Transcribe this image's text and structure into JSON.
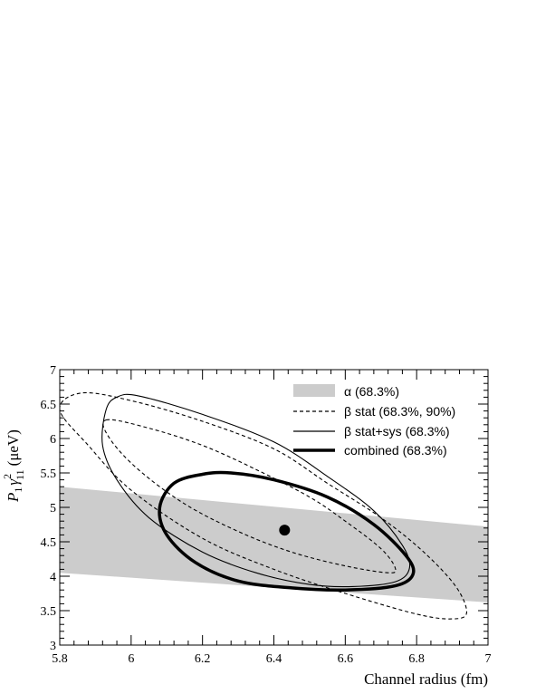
{
  "chart_data": {
    "type": "contour",
    "xlabel": "Channel radius (fm)",
    "ylabel": "P₁γ²₁₁ (μeV)",
    "ylabel_parts": {
      "main": "P",
      "sub1": "1",
      "greek": "γ",
      "sup": "2",
      "sub2": "11",
      "unit": "(μeV)"
    },
    "xlim": [
      5.8,
      7.0
    ],
    "ylim": [
      3.0,
      7.0
    ],
    "x_ticks": [
      5.8,
      6,
      6.2,
      6.4,
      6.6,
      6.8,
      7
    ],
    "x_tick_labels": [
      "5.8",
      "6",
      "6.2",
      "6.4",
      "6.6",
      "6.8",
      "7"
    ],
    "y_ticks": [
      3,
      3.5,
      4,
      4.5,
      5,
      5.5,
      6,
      6.5,
      7
    ],
    "y_tick_labels": [
      "3",
      "3.5",
      "4",
      "4.5",
      "5",
      "5.5",
      "6",
      "6.5",
      "7"
    ],
    "best_fit": {
      "x": 6.43,
      "y": 4.67
    },
    "alpha_band": {
      "name": "α (68.3%)",
      "color": "#cccccc",
      "upper": [
        [
          5.8,
          5.3
        ],
        [
          7.0,
          4.72
        ]
      ],
      "lower": [
        [
          5.8,
          4.05
        ],
        [
          7.0,
          3.62
        ]
      ]
    },
    "series": [
      {
        "name": "β stat (68.3%, 90%)",
        "style": "dashed",
        "contours": [
          [
            [
              5.93,
              6.27
            ],
            [
              6.05,
              6.15
            ],
            [
              6.2,
              5.9
            ],
            [
              6.35,
              5.55
            ],
            [
              6.5,
              5.15
            ],
            [
              6.6,
              4.8
            ],
            [
              6.7,
              4.4
            ],
            [
              6.74,
              4.12
            ],
            [
              6.72,
              4.05
            ],
            [
              6.6,
              4.15
            ],
            [
              6.45,
              4.35
            ],
            [
              6.3,
              4.65
            ],
            [
              6.15,
              5.05
            ],
            [
              6.02,
              5.55
            ],
            [
              5.94,
              6.0
            ],
            [
              5.93,
              6.27
            ]
          ],
          [
            [
              5.8,
              6.42
            ],
            [
              5.86,
              6.66
            ],
            [
              6.0,
              6.55
            ],
            [
              6.2,
              6.25
            ],
            [
              6.4,
              5.85
            ],
            [
              6.55,
              5.35
            ],
            [
              6.7,
              4.85
            ],
            [
              6.82,
              4.35
            ],
            [
              6.91,
              3.85
            ],
            [
              6.94,
              3.47
            ],
            [
              6.9,
              3.38
            ],
            [
              6.8,
              3.45
            ],
            [
              6.6,
              3.75
            ],
            [
              6.4,
              4.1
            ],
            [
              6.2,
              4.55
            ],
            [
              6.0,
              5.25
            ],
            [
              5.88,
              5.9
            ],
            [
              5.8,
              6.42
            ]
          ]
        ]
      },
      {
        "name": "β stat+sys (68.3%)",
        "style": "solid",
        "contours": [
          [
            [
              5.93,
              6.42
            ],
            [
              5.96,
              6.6
            ],
            [
              6.02,
              6.62
            ],
            [
              6.2,
              6.35
            ],
            [
              6.4,
              5.95
            ],
            [
              6.55,
              5.45
            ],
            [
              6.68,
              4.95
            ],
            [
              6.76,
              4.45
            ],
            [
              6.78,
              4.12
            ],
            [
              6.74,
              3.92
            ],
            [
              6.62,
              3.85
            ],
            [
              6.5,
              3.88
            ],
            [
              6.35,
              4.05
            ],
            [
              6.2,
              4.35
            ],
            [
              6.05,
              4.85
            ],
            [
              5.96,
              5.4
            ],
            [
              5.92,
              5.9
            ],
            [
              5.93,
              6.42
            ]
          ]
        ]
      },
      {
        "name": "combined (68.3%)",
        "style": "thick",
        "contours": [
          [
            [
              6.08,
              5.0
            ],
            [
              6.12,
              5.35
            ],
            [
              6.2,
              5.48
            ],
            [
              6.28,
              5.5
            ],
            [
              6.4,
              5.4
            ],
            [
              6.55,
              5.15
            ],
            [
              6.68,
              4.75
            ],
            [
              6.77,
              4.3
            ],
            [
              6.79,
              4.03
            ],
            [
              6.74,
              3.86
            ],
            [
              6.6,
              3.8
            ],
            [
              6.45,
              3.83
            ],
            [
              6.3,
              3.93
            ],
            [
              6.18,
              4.2
            ],
            [
              6.1,
              4.6
            ],
            [
              6.08,
              5.0
            ]
          ]
        ]
      }
    ],
    "legend_position": "top-right"
  }
}
